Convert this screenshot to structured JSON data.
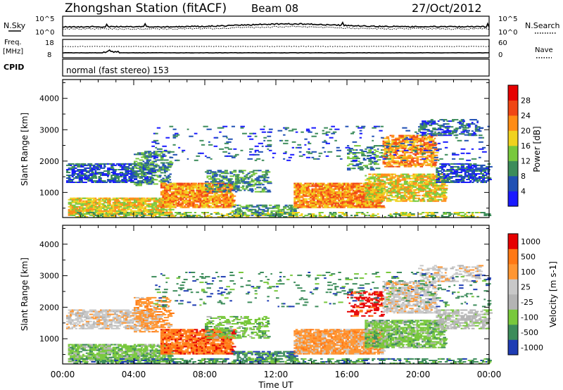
{
  "header": {
    "title": "Zhongshan Station (fitACF)",
    "beam": "Beam 08",
    "date": "27/Oct/2012"
  },
  "top_panels": {
    "nsky_label": "N.Sky",
    "nsky_top": "10^5",
    "nsky_bottom": "10^0",
    "nsearch_label": "N.Search",
    "nsearch_top": "10^5",
    "nsearch_bottom": "10^0",
    "freq_label_1": "Freq.",
    "freq_label_2": "[MHz]",
    "freq_top": "18",
    "freq_bottom": "8",
    "nave_label": "Nave",
    "nave_top": "60",
    "nave_bottom": "0",
    "cpid_label": "CPID",
    "cpid_text": "normal (fast stereo) 153"
  },
  "colors": {
    "power": [
      "#1a1aff",
      "#2050b4",
      "#3c8c5a",
      "#78c83c",
      "#f0d21e",
      "#ff8c14",
      "#f04614",
      "#e60000"
    ],
    "velocity": [
      "#e60000",
      "#ff7814",
      "#ff9632",
      "#c8c8c8",
      "#b4b4b4",
      "#78c83c",
      "#3c8c5a",
      "#1e3cb4"
    ]
  },
  "chart_data": [
    {
      "type": "heatmap",
      "name": "power",
      "xlabel": "",
      "ylabel": "Slant Range [km]",
      "x_ticks": [
        "00:00",
        "04:00",
        "08:00",
        "12:00",
        "16:00",
        "20:00",
        "00:00"
      ],
      "y_ticks": [
        1000,
        2000,
        3000,
        4000
      ],
      "ylim": [
        200,
        4600
      ],
      "colorbar_label": "Power [dB]",
      "colorbar_ticks": [
        4,
        8,
        12,
        16,
        20,
        24,
        28
      ]
    },
    {
      "type": "heatmap",
      "name": "velocity",
      "xlabel": "Time UT",
      "ylabel": "Slant Range [km]",
      "x_ticks": [
        "00:00",
        "04:00",
        "08:00",
        "12:00",
        "16:00",
        "20:00",
        "00:00"
      ],
      "y_ticks": [
        1000,
        2000,
        3000,
        4000
      ],
      "ylim": [
        200,
        4600
      ],
      "colorbar_label": "Velocity [m s-1]",
      "colorbar_ticks": [
        "1000",
        "500",
        "100",
        "25",
        "-25",
        "-100",
        "-500",
        "-1000"
      ]
    }
  ]
}
